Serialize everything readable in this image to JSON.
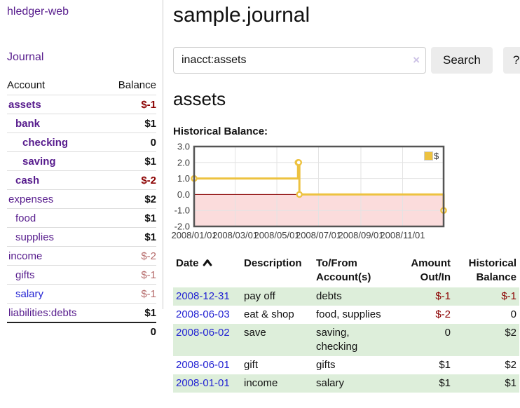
{
  "colors": {
    "link_purple": "#571c8d",
    "link_blue": "#2323d3",
    "negative_strong": "#8b0000",
    "negative_muted": "#b56a6a",
    "stripe_green": "#ddeeda",
    "chart_line": "#edc240",
    "chart_negative_fill": "#fbdcdc",
    "chart_zero_line": "#8b0000",
    "button_bg": "#ececec"
  },
  "sidebar": {
    "brand": "hledger-web",
    "journal_link": "Journal",
    "account_header": "Account",
    "balance_header": "Balance",
    "accounts": [
      {
        "name": "assets",
        "depth": 0,
        "bold": true,
        "balance": "$-1",
        "neg": "strong"
      },
      {
        "name": "bank",
        "depth": 1,
        "bold": true,
        "balance": "$1",
        "neg": "none"
      },
      {
        "name": "checking",
        "depth": 2,
        "bold": true,
        "balance": "0",
        "neg": "none"
      },
      {
        "name": "saving",
        "depth": 2,
        "bold": true,
        "balance": "$1",
        "neg": "none"
      },
      {
        "name": "cash",
        "depth": 1,
        "bold": true,
        "balance": "$-2",
        "neg": "strong"
      },
      {
        "name": "expenses",
        "depth": 0,
        "bold": false,
        "balance": "$2",
        "neg": "none"
      },
      {
        "name": "food",
        "depth": 1,
        "bold": false,
        "balance": "$1",
        "neg": "none"
      },
      {
        "name": "supplies",
        "depth": 1,
        "bold": false,
        "balance": "$1",
        "neg": "none"
      },
      {
        "name": "income",
        "depth": 0,
        "bold": false,
        "balance": "$-2",
        "neg": "muted"
      },
      {
        "name": "gifts",
        "depth": 1,
        "bold": false,
        "balance": "$-1",
        "neg": "muted"
      },
      {
        "name": "salary",
        "depth": 1,
        "bold": false,
        "balance": "$-1",
        "neg": "muted",
        "link_blue": true
      },
      {
        "name": "liabilities:debts",
        "depth": 0,
        "bold": false,
        "balance": "$1",
        "neg": "none"
      }
    ],
    "total": "0"
  },
  "header": {
    "title": "sample.journal"
  },
  "search": {
    "query": "inacct:assets",
    "clear_icon": "×",
    "search_label": "Search",
    "help_label": "?"
  },
  "account_page": {
    "heading": "assets",
    "chart_label": "Historical Balance:"
  },
  "chart_data": {
    "type": "line",
    "title": "Historical Balance",
    "legend": "$",
    "legend_position": "top-right",
    "grid": true,
    "step": true,
    "ylim": [
      -2,
      3
    ],
    "x_range": [
      "2008-01-01",
      "2008-12-31"
    ],
    "y_ticks": [
      "3.0",
      "2.0",
      "1.0",
      "0.0",
      "-1.0",
      "-2.0"
    ],
    "x_ticks": [
      {
        "date": "2008-01-01",
        "label": "2008/01/01"
      },
      {
        "date": "2008-03-01",
        "label": "2008/03/01"
      },
      {
        "date": "2008-05-01",
        "label": "2008/05/01"
      },
      {
        "date": "2008-07-01",
        "label": "2008/07/01"
      },
      {
        "date": "2008-09-01",
        "label": "2008/09/01"
      },
      {
        "date": "2008-11-01",
        "label": "2008/11/01"
      }
    ],
    "series": [
      {
        "name": "$",
        "color": "#edc240",
        "points": [
          {
            "date": "2008-01-01",
            "value": 1
          },
          {
            "date": "2008-06-01",
            "value": 2
          },
          {
            "date": "2008-06-02",
            "value": 2
          },
          {
            "date": "2008-06-03",
            "value": 0
          },
          {
            "date": "2008-12-31",
            "value": -1
          }
        ]
      }
    ]
  },
  "register": {
    "headers": {
      "date": "Date",
      "description": "Description",
      "accounts": "To/From Account(s)",
      "amount": "Amount Out/In",
      "balance": "Historical Balance"
    },
    "rows": [
      {
        "date": "2008-12-31",
        "description": "pay off",
        "accounts": "debts",
        "amount": "$-1",
        "amount_neg": true,
        "balance": "$-1",
        "balance_neg": true,
        "stripe": true
      },
      {
        "date": "2008-06-03",
        "description": "eat & shop",
        "accounts": "food, supplies",
        "amount": "$-2",
        "amount_neg": true,
        "balance": "0",
        "balance_neg": false,
        "stripe": false
      },
      {
        "date": "2008-06-02",
        "description": "save",
        "accounts": "saving, checking",
        "amount": "0",
        "amount_neg": false,
        "balance": "$2",
        "balance_neg": false,
        "stripe": true
      },
      {
        "date": "2008-06-01",
        "description": "gift",
        "accounts": "gifts",
        "amount": "$1",
        "amount_neg": false,
        "balance": "$2",
        "balance_neg": false,
        "stripe": false
      },
      {
        "date": "2008-01-01",
        "description": "income",
        "accounts": "salary",
        "amount": "$1",
        "amount_neg": false,
        "balance": "$1",
        "balance_neg": false,
        "stripe": true
      }
    ]
  }
}
